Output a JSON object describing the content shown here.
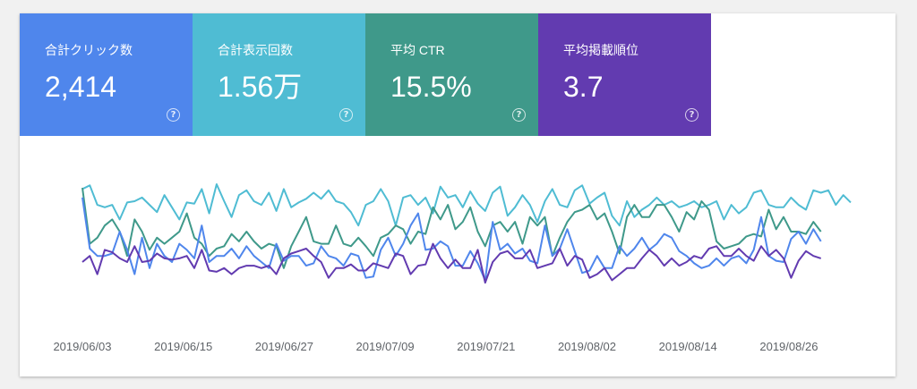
{
  "metrics": [
    {
      "label": "合計クリック数",
      "value": "2,414",
      "color": "#4f86ec"
    },
    {
      "label": "合計表示回数",
      "value": "1.56万",
      "color": "#4fbcd3"
    },
    {
      "label": "平均 CTR",
      "value": "15.5%",
      "color": "#3f998a"
    },
    {
      "label": "平均掲載順位",
      "value": "3.7",
      "color": "#623bb0"
    }
  ],
  "help_glyph": "?",
  "chart_data": {
    "type": "line",
    "title": "",
    "xlabel": "",
    "ylabel": "",
    "grid": false,
    "x_tick_labels": [
      "2019/06/03",
      "2019/06/15",
      "2019/06/27",
      "2019/07/09",
      "2019/07/21",
      "2019/08/02",
      "2019/08/14",
      "2019/08/26"
    ],
    "normalized_scale": [
      0,
      100
    ],
    "series": [
      {
        "color": "#4fbcd3",
        "values": [
          85,
          88,
          72,
          70,
          72,
          60,
          74,
          75,
          78,
          72,
          66,
          80,
          70,
          60,
          74,
          73,
          85,
          65,
          89,
          75,
          62,
          80,
          84,
          75,
          72,
          82,
          67,
          85,
          70,
          74,
          77,
          82,
          77,
          84,
          75,
          73,
          66,
          55,
          72,
          75,
          85,
          75,
          55,
          78,
          80,
          72,
          78,
          65,
          87,
          78,
          80,
          70,
          83,
          73,
          67,
          82,
          87,
          63,
          70,
          80,
          72,
          58,
          75,
          85,
          72,
          70,
          84,
          88,
          73,
          78,
          82,
          63,
          55,
          75,
          62,
          68,
          72,
          78,
          72,
          75,
          70,
          72,
          75,
          70,
          72,
          75,
          60,
          72,
          65,
          70,
          82,
          84,
          72,
          70,
          70,
          78,
          72,
          68,
          84,
          82,
          84,
          72,
          80,
          74
        ]
      },
      {
        "color": "#3f998a",
        "values": [
          86,
          40,
          45,
          55,
          60,
          50,
          30,
          60,
          50,
          35,
          45,
          40,
          45,
          50,
          65,
          45,
          40,
          30,
          36,
          38,
          48,
          42,
          50,
          42,
          36,
          40,
          38,
          20,
          38,
          50,
          62,
          42,
          40,
          40,
          55,
          40,
          38,
          45,
          38,
          30,
          45,
          48,
          55,
          52,
          40,
          50,
          48,
          70,
          60,
          72,
          52,
          58,
          70,
          50,
          38,
          55,
          58,
          50,
          58,
          40,
          62,
          55,
          62,
          30,
          45,
          58,
          66,
          68,
          72,
          60,
          65,
          50,
          32,
          62,
          72,
          62,
          62,
          72,
          72,
          62,
          50,
          66,
          60,
          75,
          68,
          42,
          36,
          38,
          40,
          46,
          48,
          46,
          68,
          52,
          62,
          50,
          50,
          48,
          58,
          50
        ]
      },
      {
        "color": "#4f86ec",
        "values": [
          78,
          36,
          30,
          30,
          32,
          50,
          35,
          15,
          45,
          20,
          40,
          30,
          25,
          40,
          35,
          28,
          55,
          25,
          30,
          30,
          36,
          28,
          38,
          30,
          25,
          20,
          40,
          26,
          30,
          30,
          22,
          24,
          38,
          30,
          28,
          22,
          32,
          30,
          12,
          13,
          35,
          45,
          30,
          40,
          55,
          65,
          35,
          36,
          42,
          38,
          22,
          22,
          34,
          24,
          10,
          58,
          35,
          40,
          32,
          36,
          26,
          24,
          55,
          30,
          36,
          52,
          34,
          16,
          18,
          30,
          20,
          20,
          38,
          30,
          36,
          45,
          35,
          40,
          48,
          45,
          34,
          30,
          24,
          20,
          22,
          28,
          22,
          28,
          30,
          24,
          35,
          62,
          30,
          26,
          25,
          44,
          50,
          40,
          52,
          42
        ]
      },
      {
        "color": "#623bb0",
        "values": [
          25,
          30,
          15,
          35,
          33,
          28,
          25,
          38,
          25,
          26,
          32,
          28,
          27,
          28,
          30,
          20,
          35,
          18,
          17,
          20,
          15,
          20,
          22,
          22,
          20,
          22,
          15,
          28,
          32,
          34,
          36,
          30,
          25,
          12,
          20,
          20,
          23,
          18,
          18,
          24,
          22,
          20,
          32,
          30,
          15,
          22,
          23,
          40,
          28,
          20,
          27,
          20,
          20,
          35,
          8,
          25,
          32,
          34,
          28,
          28,
          35,
          20,
          22,
          24,
          36,
          22,
          30,
          27,
          12,
          15,
          20,
          10,
          15,
          20,
          20,
          28,
          35,
          30,
          22,
          28,
          22,
          25,
          30,
          28,
          36,
          38,
          30,
          30,
          36,
          30,
          26,
          38,
          30,
          35,
          28,
          12,
          26,
          34,
          30,
          28
        ]
      }
    ]
  }
}
